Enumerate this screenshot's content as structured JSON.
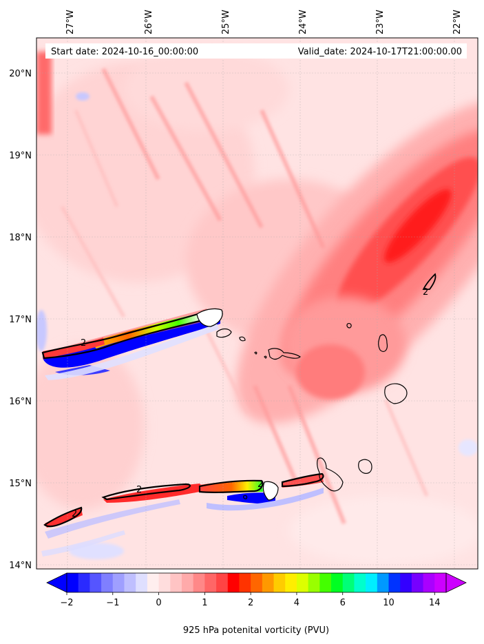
{
  "header": {
    "start_date": "Start date: 2024-10-16_00:00:00",
    "valid_date": "Valid_date: 2024-10-17T21:00:00.00"
  },
  "map": {
    "lon_labels": [
      "27°W",
      "26°W",
      "25°W",
      "24°W",
      "23°W",
      "22°W"
    ],
    "lat_labels": [
      "20°N",
      "19°N",
      "18°N",
      "17°N",
      "16°N",
      "15°N",
      "14°N"
    ],
    "contour_value_label": "2"
  },
  "colorbar": {
    "title": "925 hPa potenital vorticity (PVU)",
    "tick_labels": [
      "−2",
      "−1",
      "0",
      "1",
      "2",
      "4",
      "6",
      "10",
      "14"
    ],
    "colors": [
      "#0000ff",
      "#2a2aff",
      "#5555ff",
      "#7f7fff",
      "#9f9fff",
      "#bfbfff",
      "#dfdfff",
      "#ffeeee",
      "#ffdddd",
      "#ffc4c4",
      "#ffaaaa",
      "#ff8888",
      "#ff6666",
      "#ff4444",
      "#ff0000",
      "#ff3300",
      "#ff6600",
      "#ff9900",
      "#ffcc00",
      "#ffee00",
      "#ddff00",
      "#99ff00",
      "#44ff00",
      "#00ff22",
      "#00ff77",
      "#00ffcc",
      "#00eeff",
      "#0099ff",
      "#0033ff",
      "#3300ff",
      "#7700ff",
      "#aa00ff",
      "#cc00ff"
    ]
  }
}
